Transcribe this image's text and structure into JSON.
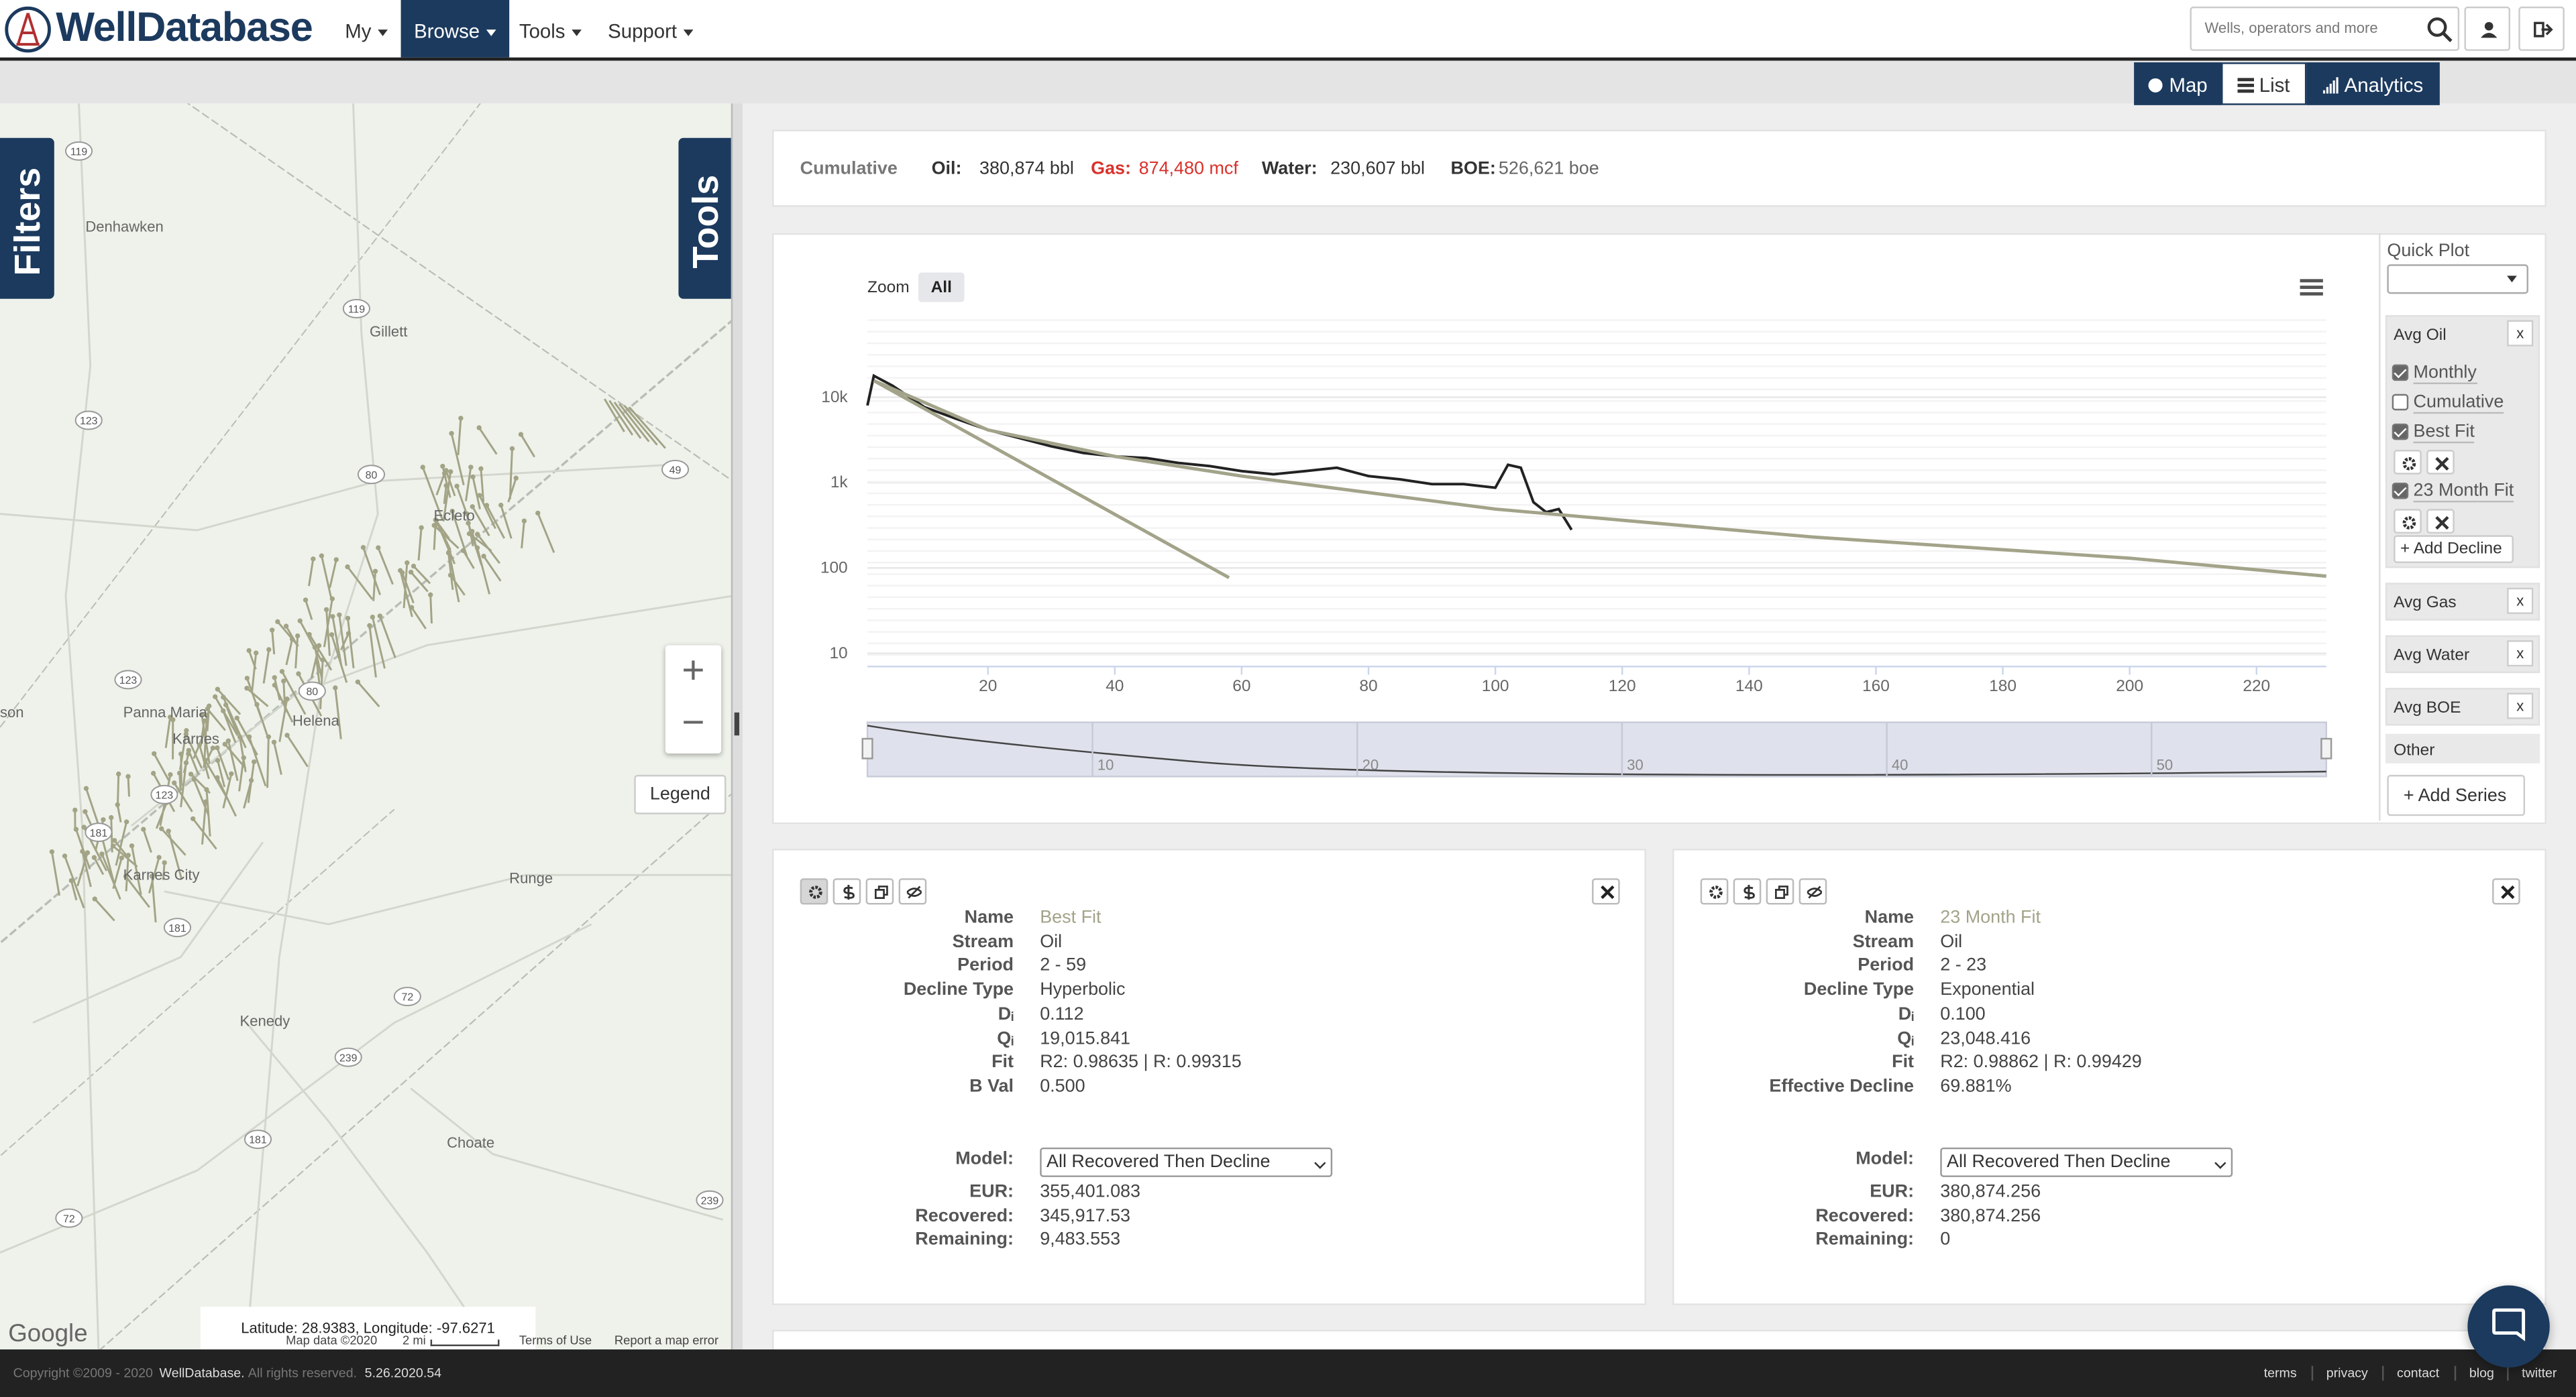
{
  "nav": {
    "brand": "WellDatabase",
    "menu": [
      {
        "label": "My",
        "active": false
      },
      {
        "label": "Browse",
        "active": true
      },
      {
        "label": "Tools",
        "active": false
      },
      {
        "label": "Support",
        "active": false
      }
    ],
    "search_placeholder": "Wells, operators and more"
  },
  "view_tabs": [
    {
      "label": "Map",
      "active": true
    },
    {
      "label": "List",
      "active": false
    },
    {
      "label": "Analytics",
      "active": true
    }
  ],
  "map": {
    "filters": "Filters",
    "tools": "Tools",
    "legend": "Legend",
    "zoom_in": "+",
    "zoom_out": "−",
    "places": [
      "Denhawken",
      "Gillett",
      "Ecleto",
      "Panna Maria",
      "Helena",
      "Karnes",
      "Karnes City",
      "Runge",
      "Kenedy",
      "Choate",
      "son"
    ],
    "routes": [
      "119",
      "119",
      "123",
      "80",
      "49",
      "123",
      "80",
      "123",
      "181",
      "181",
      "72",
      "239",
      "181",
      "72",
      "239"
    ],
    "coords": "Latitude: 28.9383, Longitude: -97.6271",
    "google": "Google",
    "footer": [
      "Map data ©2020",
      "2 mi",
      "Terms of Use",
      "Report a map error"
    ]
  },
  "summary": {
    "label": "Cumulative",
    "items": [
      {
        "name": "Oil:",
        "value": "380,874 bbl"
      },
      {
        "name": "Gas:",
        "value": "874,480 mcf"
      },
      {
        "name": "Water:",
        "value": "230,607 bbl"
      },
      {
        "name": "BOE:",
        "value": "526,621 boe"
      }
    ]
  },
  "chart_data": {
    "type": "line",
    "zoom_label": "Zoom",
    "zoom_options": [
      "All"
    ],
    "log_scale": true,
    "grid": true,
    "xlim": [
      1,
      231
    ],
    "ylim": [
      7,
      80000
    ],
    "xticks": [
      20,
      40,
      60,
      80,
      100,
      120,
      140,
      160,
      180,
      200,
      220
    ],
    "yticks": [
      10,
      100,
      {
        "value": 1000,
        "label": "1k"
      },
      {
        "value": 10000,
        "label": "10k"
      }
    ],
    "navigator": {
      "xlim": [
        1.5,
        56.6
      ],
      "xticks": [
        10,
        20,
        30,
        40,
        50
      ]
    },
    "series": [
      {
        "name": "Monthly",
        "color": "#222222",
        "checked": true,
        "x": [
          1,
          2,
          5,
          10,
          15,
          20,
          30,
          35,
          40,
          45,
          50,
          55,
          60,
          65,
          70,
          75,
          80,
          85,
          90,
          95,
          100,
          102,
          104,
          106,
          108,
          110,
          112
        ],
        "values": [
          8000,
          17800,
          13600,
          7650,
          5600,
          4130,
          2650,
          2220,
          2030,
          1940,
          1700,
          1560,
          1360,
          1250,
          1360,
          1490,
          1190,
          1090,
          960,
          960,
          870,
          1620,
          1490,
          590,
          450,
          490,
          280
        ]
      },
      {
        "name": "Best Fit",
        "color": "#a3a38a",
        "checked": true,
        "x": [
          2,
          20,
          40,
          60,
          100,
          150,
          200,
          231
        ],
        "values": [
          15600,
          4130,
          2030,
          1190,
          490,
          230,
          130,
          80
        ]
      },
      {
        "name": "23 Month Fit",
        "color": "#a3a38a",
        "checked": true,
        "x": [
          2,
          58
        ],
        "values": [
          15600,
          77
        ]
      }
    ]
  },
  "panel": {
    "quick_plot": "Quick Plot",
    "cumulative": {
      "label": "Cumulative",
      "checked": false
    },
    "add_decline": "+ Add Decline",
    "groups": [
      {
        "name": "Avg Oil",
        "close": "x"
      },
      {
        "name": "Avg Gas",
        "close": "x"
      },
      {
        "name": "Avg Water",
        "close": "x"
      },
      {
        "name": "Avg BOE",
        "close": "x"
      }
    ],
    "other": "Other",
    "add_series": "+ Add Series"
  },
  "declines": [
    {
      "fields": [
        {
          "label": "Name",
          "value": "Best Fit"
        },
        {
          "label": "Stream",
          "value": "Oil"
        },
        {
          "label": "Period",
          "value": "2 - 59"
        },
        {
          "label": "Decline Type",
          "value": "Hyperbolic"
        },
        {
          "label": "Dᵢ",
          "value": "0.112"
        },
        {
          "label": "Qᵢ",
          "value": "19,015.841"
        },
        {
          "label": "Fit",
          "value": "R2: 0.98635 | R: 0.99315"
        },
        {
          "label": "B Val",
          "value": "0.500"
        }
      ],
      "model_label": "Model:",
      "model": "All Recovered Then Decline",
      "results": [
        {
          "label": "EUR:",
          "value": "355,401.083"
        },
        {
          "label": "Recovered:",
          "value": "345,917.53"
        },
        {
          "label": "Remaining:",
          "value": "9,483.553"
        }
      ]
    },
    {
      "fields": [
        {
          "label": "Name",
          "value": "23 Month Fit"
        },
        {
          "label": "Stream",
          "value": "Oil"
        },
        {
          "label": "Period",
          "value": "2 - 23"
        },
        {
          "label": "Decline Type",
          "value": "Exponential"
        },
        {
          "label": "Dᵢ",
          "value": "0.100"
        },
        {
          "label": "Qᵢ",
          "value": "23,048.416"
        },
        {
          "label": "Fit",
          "value": "R2: 0.98862 | R: 0.99429"
        },
        {
          "label": "Effective Decline",
          "value": "69.881%"
        }
      ],
      "model_label": "Model:",
      "model": "All Recovered Then Decline",
      "results": [
        {
          "label": "EUR:",
          "value": "380,874.256"
        },
        {
          "label": "Recovered:",
          "value": "380,874.256"
        },
        {
          "label": "Remaining:",
          "value": "0"
        }
      ]
    }
  ],
  "footer": {
    "copyright": "Copyright ©2009 - 2020",
    "company": "WellDatabase.",
    "rights": "All rights reserved.",
    "version": "5.26.2020.54",
    "links": [
      "terms",
      "privacy",
      "contact",
      "blog",
      "twitter"
    ]
  }
}
